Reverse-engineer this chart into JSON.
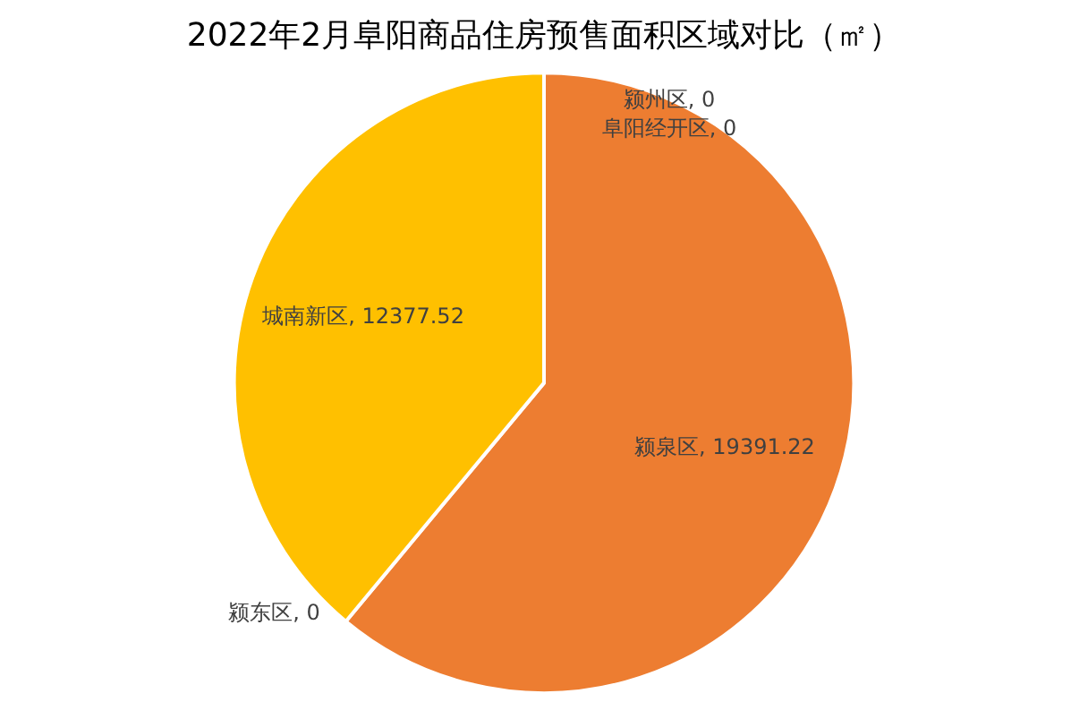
{
  "chart_data": {
    "type": "pie",
    "title": "2022年2月阜阳商品住房预售面积区域对比（㎡）",
    "categories": [
      "颍泉区",
      "颍东区",
      "城南新区",
      "颍州区",
      "阜阳经开区"
    ],
    "values": [
      19391.22,
      0,
      12377.52,
      0,
      0
    ],
    "value_labels": [
      ", 19391.22",
      ", 0",
      ", 12377.52",
      ", 0",
      ", 0"
    ],
    "colors": [
      "#ed7d31",
      "#a5a5a5",
      "#ffc000",
      "#4472c4",
      "#5b9bd5"
    ],
    "legend": false
  }
}
